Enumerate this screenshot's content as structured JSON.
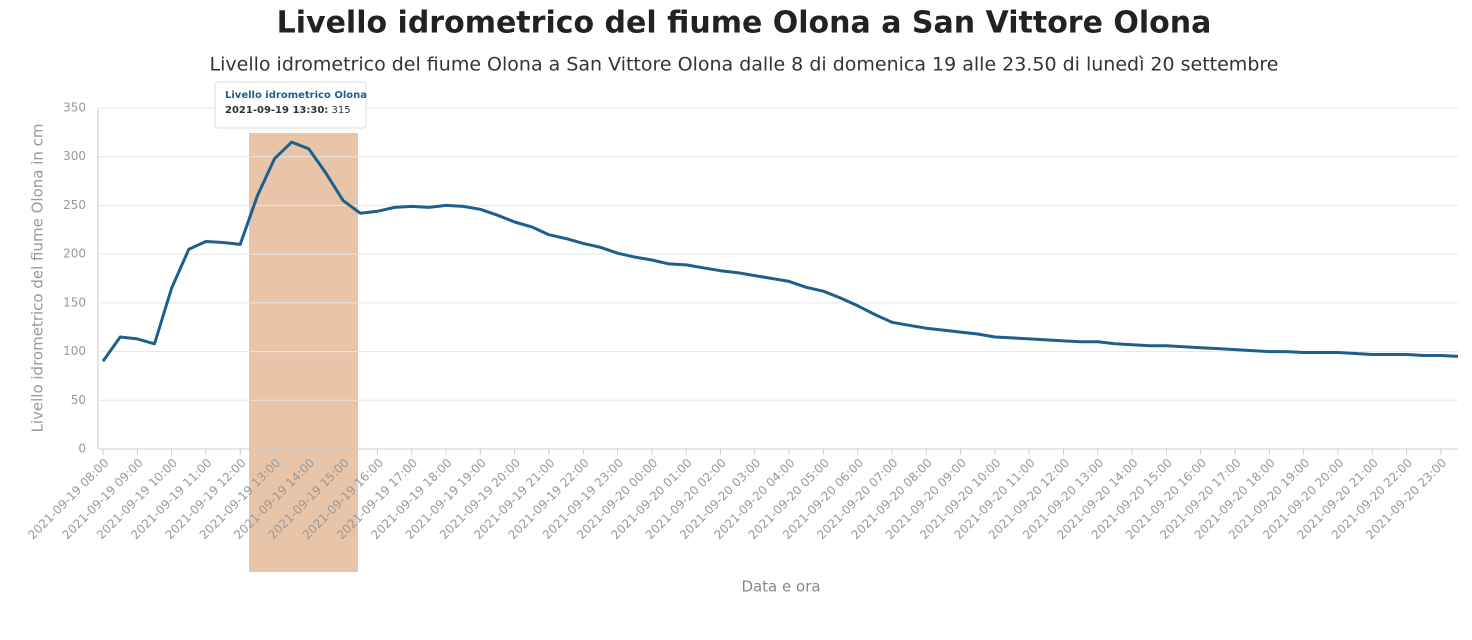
{
  "chart_data": {
    "type": "line",
    "title": "Livello idrometrico del fiume Olona a San Vittore Olona",
    "subtitle": "Livello idrometrico del fiume Olona a San Vittore Olona dalle 8 di domenica 19 alle 23.50 di lunedì 20 settembre",
    "x_label": "Data e ora",
    "y_label": "Livello idrometrico del fiume Olona in cm",
    "categories": [
      "2021-09-19 08:00",
      null,
      "2021-09-19 09:00",
      null,
      "2021-09-19 10:00",
      null,
      "2021-09-19 11:00",
      null,
      "2021-09-19 12:00",
      null,
      "2021-09-19 13:00",
      null,
      "2021-09-19 14:00",
      null,
      "2021-09-19 15:00",
      null,
      "2021-09-19 16:00",
      null,
      "2021-09-19 17:00",
      null,
      "2021-09-19 18:00",
      null,
      "2021-09-19 19:00",
      null,
      "2021-09-19 20:00",
      null,
      "2021-09-19 21:00",
      null,
      "2021-09-19 22:00",
      null,
      "2021-09-19 23:00",
      null,
      "2021-09-20 00:00",
      null,
      "2021-09-20 01:00",
      null,
      "2021-09-20 02:00",
      null,
      "2021-09-20 03:00",
      null,
      "2021-09-20 04:00",
      null,
      "2021-09-20 05:00",
      null,
      "2021-09-20 06:00",
      null,
      "2021-09-20 07:00",
      null,
      "2021-09-20 08:00",
      null,
      "2021-09-20 09:00",
      null,
      "2021-09-20 10:00",
      null,
      "2021-09-20 11:00",
      null,
      "2021-09-20 12:00",
      null,
      "2021-09-20 13:00",
      null,
      "2021-09-20 14:00",
      null,
      "2021-09-20 15:00",
      null,
      "2021-09-20 16:00",
      null,
      "2021-09-20 17:00",
      null,
      "2021-09-20 18:00",
      null,
      "2021-09-20 19:00",
      null,
      "2021-09-20 20:00",
      null,
      "2021-09-20 21:00",
      null,
      "2021-09-20 22:00",
      null,
      "2021-09-20 23:00",
      null
    ],
    "series": [
      {
        "name": "Livello idrometrico Olona",
        "color": "#1f5f8b",
        "values": [
          90,
          115,
          113,
          108,
          165,
          205,
          213,
          212,
          210,
          260,
          298,
          315,
          308,
          283,
          255,
          242,
          244,
          248,
          249,
          248,
          250,
          249,
          246,
          240,
          233,
          228,
          220,
          216,
          211,
          207,
          201,
          197,
          194,
          190,
          189,
          186,
          183,
          181,
          178,
          175,
          172,
          166,
          162,
          155,
          147,
          138,
          130,
          127,
          124,
          122,
          120,
          118,
          115,
          114,
          113,
          112,
          111,
          110,
          110,
          108,
          107,
          106,
          106,
          105,
          104,
          103,
          102,
          101,
          100,
          100,
          99,
          99,
          99,
          98,
          97,
          97,
          97,
          96,
          96,
          95
        ]
      }
    ],
    "ylim": [
      0,
      350
    ],
    "yticks": [
      0,
      50,
      100,
      150,
      200,
      250,
      300,
      350
    ],
    "grid": true,
    "tooltip_label": "2021-09-19 13:30:"
  }
}
